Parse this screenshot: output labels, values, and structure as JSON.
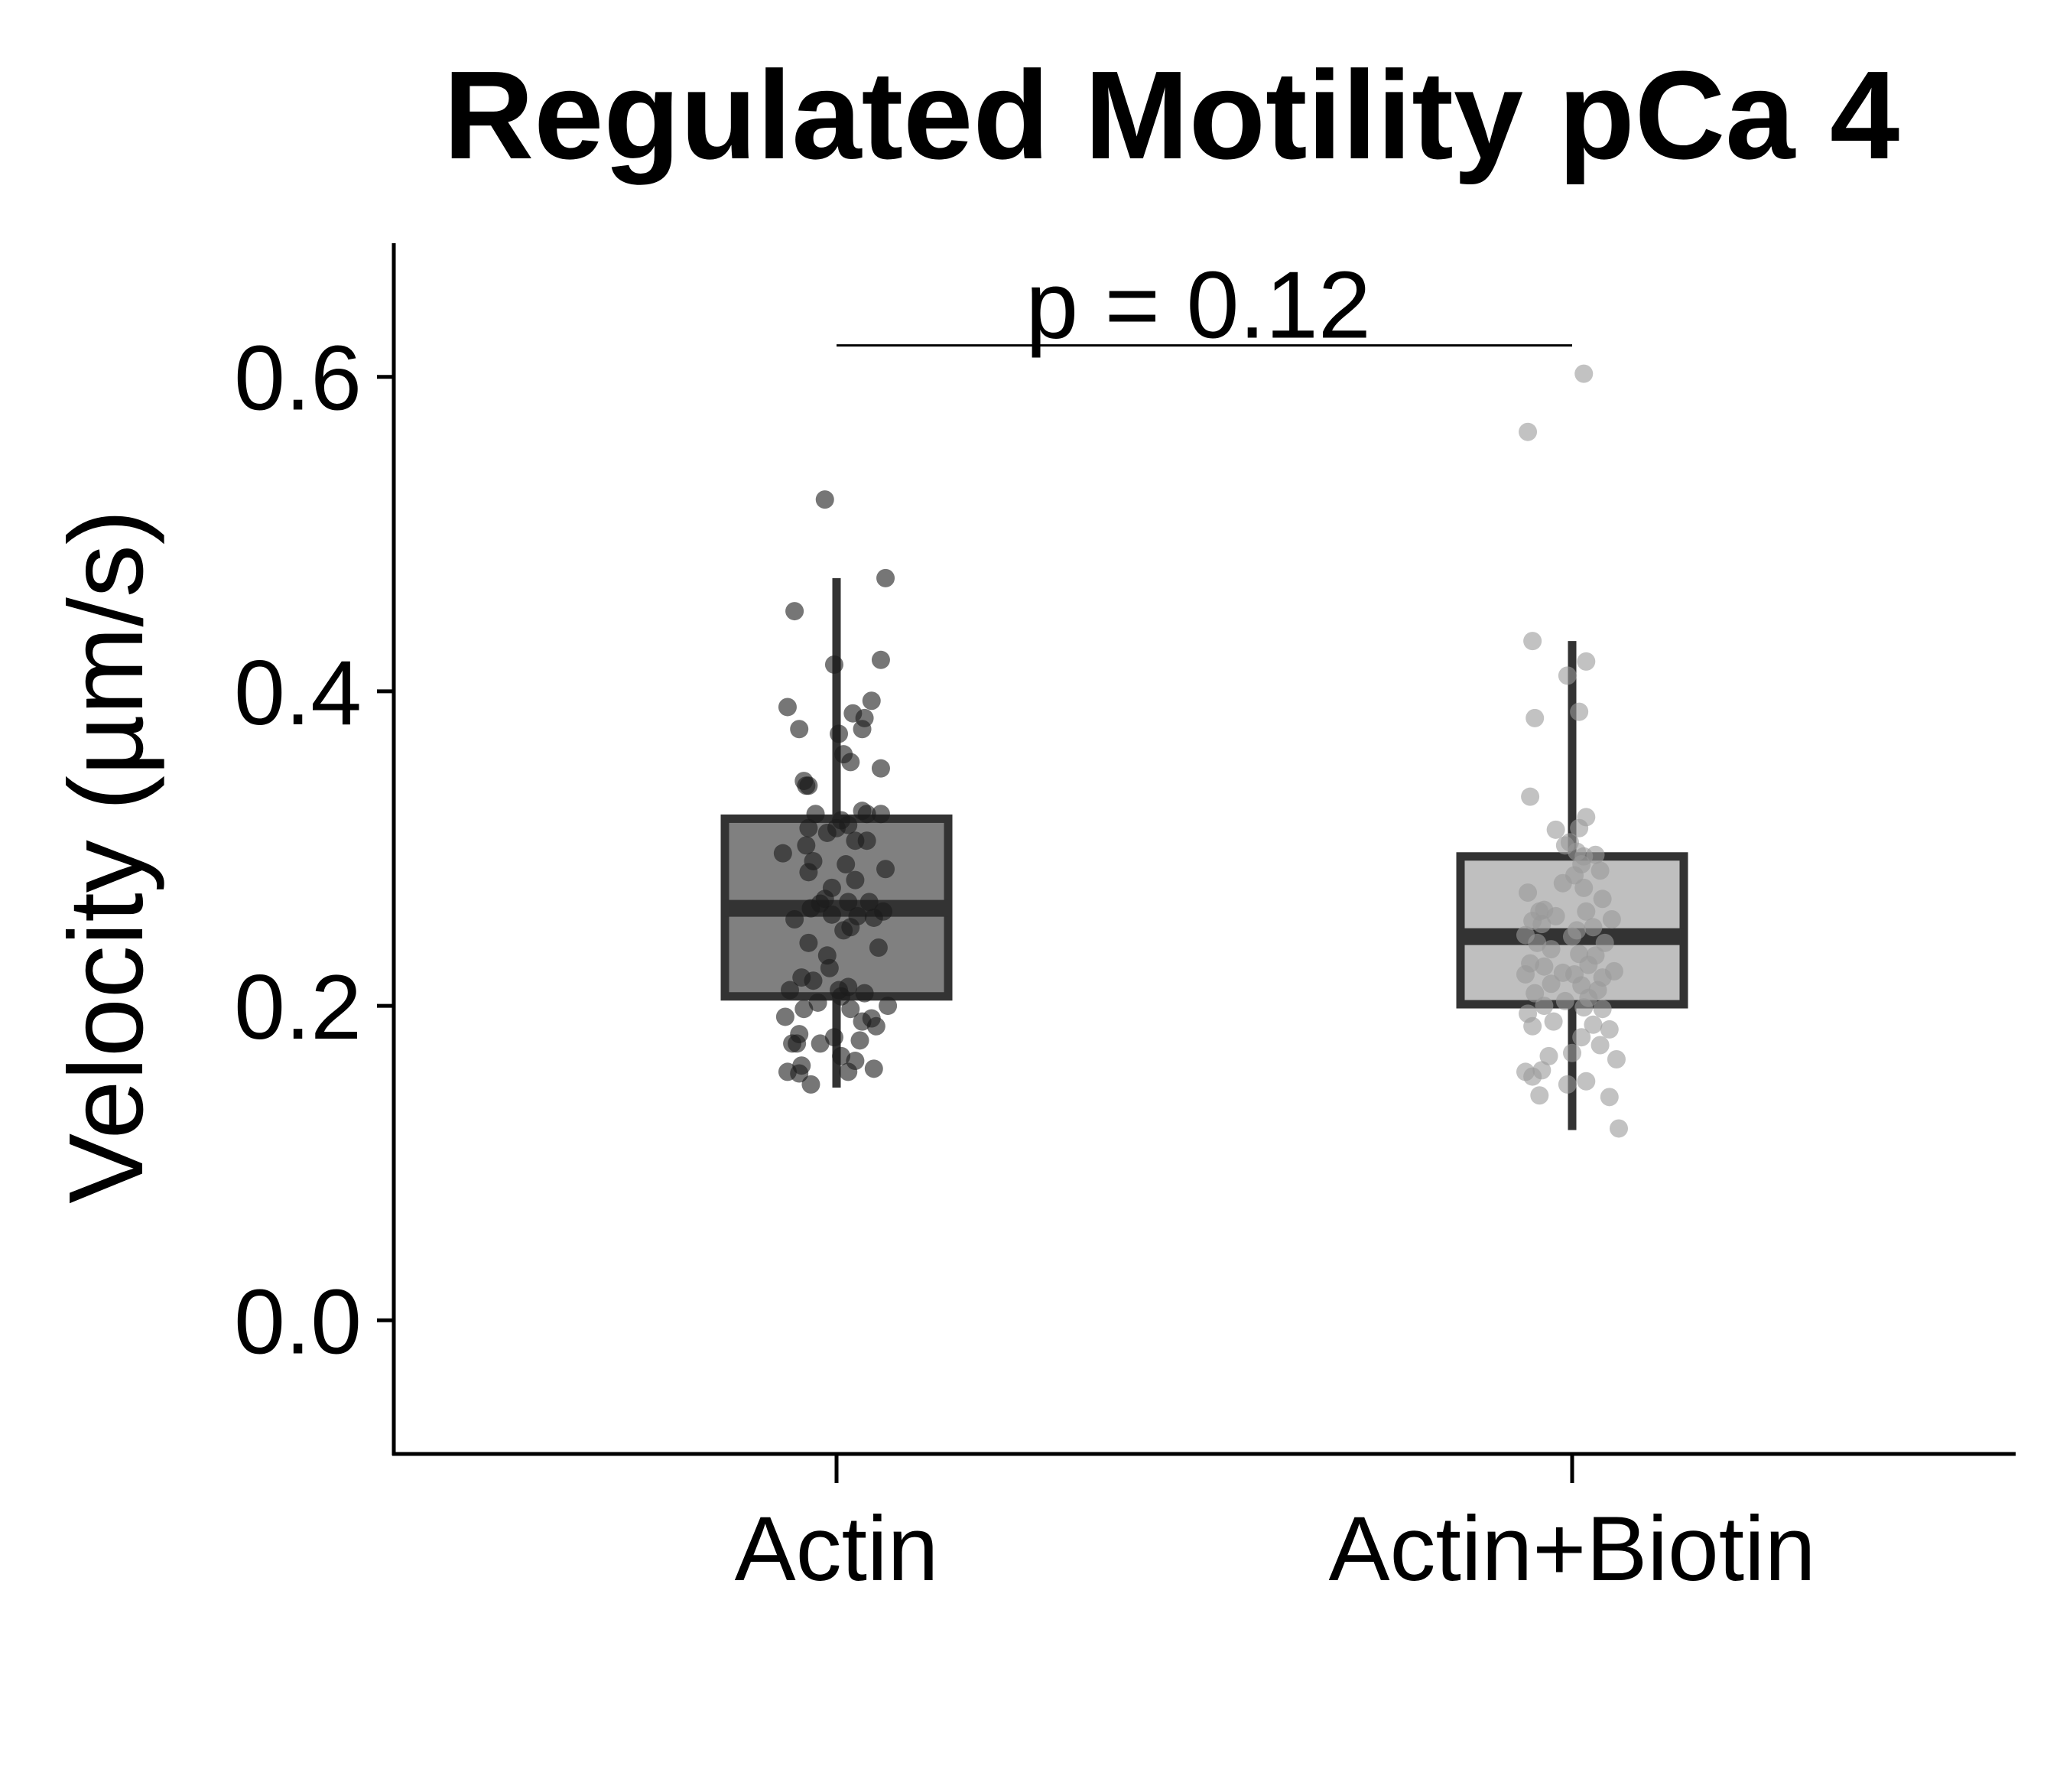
{
  "chart_data": {
    "type": "box",
    "title": "Regulated Motility pCa 4",
    "xlabel": "",
    "ylabel": "Velocity (µm/s)",
    "ylim": [
      -0.085,
      0.685
    ],
    "yticks": [
      0.0,
      0.2,
      0.4,
      0.6
    ],
    "ytick_labels": [
      "0.0",
      "0.2",
      "0.4",
      "0.6"
    ],
    "categories": [
      "Actin",
      "Actin+Biotin"
    ],
    "annotation": {
      "text": "p = 0.12",
      "y": 0.62,
      "from": "Actin",
      "to": "Actin+Biotin"
    },
    "series": [
      {
        "name": "Actin",
        "fill": "#808080",
        "point_color": "#1a1a1a",
        "whisker_low": 0.148,
        "q1": 0.206,
        "median": 0.262,
        "q3": 0.319,
        "whisker_high": 0.472,
        "points": [
          [
            -0.05,
            0.522
          ],
          [
            -0.18,
            0.451
          ],
          [
            0.21,
            0.472
          ],
          [
            0.19,
            0.42
          ],
          [
            -0.01,
            0.417
          ],
          [
            0.15,
            0.394
          ],
          [
            -0.21,
            0.39
          ],
          [
            0.07,
            0.386
          ],
          [
            0.12,
            0.383
          ],
          [
            -0.16,
            0.376
          ],
          [
            0.11,
            0.376
          ],
          [
            0.01,
            0.373
          ],
          [
            0.03,
            0.36
          ],
          [
            0.06,
            0.355
          ],
          [
            0.19,
            0.351
          ],
          [
            -0.14,
            0.343
          ],
          [
            -0.13,
            0.34
          ],
          [
            -0.12,
            0.34
          ],
          [
            -0.09,
            0.322
          ],
          [
            0.11,
            0.324
          ],
          [
            0.13,
            0.322
          ],
          [
            0.19,
            0.322
          ],
          [
            0.02,
            0.318
          ],
          [
            0.05,
            0.315
          ],
          [
            -0.12,
            0.313
          ],
          [
            0.0,
            0.313
          ],
          [
            -0.04,
            0.31
          ],
          [
            0.13,
            0.305
          ],
          [
            -0.13,
            0.302
          ],
          [
            0.08,
            0.305
          ],
          [
            -0.23,
            0.297
          ],
          [
            -0.1,
            0.292
          ],
          [
            0.04,
            0.29
          ],
          [
            0.21,
            0.287
          ],
          [
            -0.12,
            0.285
          ],
          [
            0.08,
            0.28
          ],
          [
            -0.02,
            0.275
          ],
          [
            -0.05,
            0.268
          ],
          [
            0.05,
            0.266
          ],
          [
            -0.07,
            0.265
          ],
          [
            0.14,
            0.266
          ],
          [
            -0.11,
            0.262
          ],
          [
            -0.02,
            0.258
          ],
          [
            0.2,
            0.26
          ],
          [
            0.09,
            0.257
          ],
          [
            0.16,
            0.256
          ],
          [
            -0.18,
            0.255
          ],
          [
            0.06,
            0.25
          ],
          [
            0.03,
            0.248
          ],
          [
            -0.12,
            0.24
          ],
          [
            0.18,
            0.237
          ],
          [
            -0.04,
            0.232
          ],
          [
            -0.03,
            0.224
          ],
          [
            -0.15,
            0.218
          ],
          [
            -0.1,
            0.216
          ],
          [
            0.05,
            0.212
          ],
          [
            0.01,
            0.21
          ],
          [
            -0.2,
            0.21
          ],
          [
            0.02,
            0.206
          ],
          [
            0.12,
            0.208
          ],
          [
            -0.08,
            0.202
          ],
          [
            -0.14,
            0.198
          ],
          [
            0.22,
            0.2
          ],
          [
            0.06,
            0.198
          ],
          [
            -0.22,
            0.193
          ],
          [
            0.11,
            0.19
          ],
          [
            0.15,
            0.192
          ],
          [
            0.17,
            0.187
          ],
          [
            -0.16,
            0.182
          ],
          [
            -0.01,
            0.18
          ],
          [
            0.1,
            0.178
          ],
          [
            -0.19,
            0.176
          ],
          [
            -0.07,
            0.176
          ],
          [
            -0.17,
            0.176
          ],
          [
            0.02,
            0.168
          ],
          [
            -0.15,
            0.162
          ],
          [
            0.08,
            0.165
          ],
          [
            0.05,
            0.158
          ],
          [
            0.16,
            0.16
          ],
          [
            -0.21,
            0.158
          ],
          [
            -0.16,
            0.157
          ],
          [
            -0.11,
            0.15
          ]
        ]
      },
      {
        "name": "Actin+Biotin",
        "fill": "#bfbfbf",
        "point_color": "#9a9a9a",
        "whisker_low": 0.121,
        "q1": 0.201,
        "median": 0.244,
        "q3": 0.295,
        "whisker_high": 0.432,
        "points": [
          [
            0.05,
            0.602
          ],
          [
            -0.19,
            0.565
          ],
          [
            -0.17,
            0.432
          ],
          [
            -0.02,
            0.41
          ],
          [
            0.06,
            0.419
          ],
          [
            0.03,
            0.387
          ],
          [
            -0.16,
            0.383
          ],
          [
            -0.18,
            0.333
          ],
          [
            0.06,
            0.32
          ],
          [
            -0.07,
            0.312
          ],
          [
            0.03,
            0.313
          ],
          [
            -0.03,
            0.302
          ],
          [
            -0.01,
            0.304
          ],
          [
            0.02,
            0.298
          ],
          [
            0.05,
            0.295
          ],
          [
            0.1,
            0.296
          ],
          [
            0.04,
            0.29
          ],
          [
            0.12,
            0.286
          ],
          [
            0.01,
            0.283
          ],
          [
            -0.04,
            0.278
          ],
          [
            0.05,
            0.275
          ],
          [
            -0.19,
            0.272
          ],
          [
            0.13,
            0.268
          ],
          [
            -0.14,
            0.26
          ],
          [
            -0.12,
            0.261
          ],
          [
            0.06,
            0.26
          ],
          [
            -0.07,
            0.257
          ],
          [
            -0.17,
            0.254
          ],
          [
            -0.13,
            0.252
          ],
          [
            0.09,
            0.25
          ],
          [
            0.17,
            0.255
          ],
          [
            0.02,
            0.248
          ],
          [
            -0.2,
            0.245
          ],
          [
            0.0,
            0.244
          ],
          [
            0.14,
            0.24
          ],
          [
            -0.15,
            0.24
          ],
          [
            -0.09,
            0.236
          ],
          [
            0.03,
            0.233
          ],
          [
            0.1,
            0.232
          ],
          [
            -0.18,
            0.227
          ],
          [
            -0.12,
            0.225
          ],
          [
            0.07,
            0.226
          ],
          [
            -0.04,
            0.221
          ],
          [
            0.18,
            0.222
          ],
          [
            0.01,
            0.22
          ],
          [
            -0.2,
            0.22
          ],
          [
            0.13,
            0.218
          ],
          [
            -0.09,
            0.214
          ],
          [
            0.04,
            0.213
          ],
          [
            0.11,
            0.21
          ],
          [
            -0.16,
            0.208
          ],
          [
            0.07,
            0.205
          ],
          [
            -0.03,
            0.203
          ],
          [
            -0.12,
            0.2
          ],
          [
            0.05,
            0.199
          ],
          [
            0.13,
            0.198
          ],
          [
            -0.19,
            0.195
          ],
          [
            -0.08,
            0.19
          ],
          [
            0.09,
            0.188
          ],
          [
            -0.17,
            0.187
          ],
          [
            0.16,
            0.185
          ],
          [
            0.04,
            0.18
          ],
          [
            0.12,
            0.175
          ],
          [
            0.0,
            0.17
          ],
          [
            -0.1,
            0.168
          ],
          [
            0.19,
            0.166
          ],
          [
            -0.13,
            0.159
          ],
          [
            -0.2,
            0.158
          ],
          [
            -0.17,
            0.155
          ],
          [
            0.06,
            0.152
          ],
          [
            -0.02,
            0.15
          ],
          [
            0.16,
            0.142
          ],
          [
            -0.14,
            0.143
          ],
          [
            0.2,
            0.122
          ]
        ]
      }
    ]
  }
}
